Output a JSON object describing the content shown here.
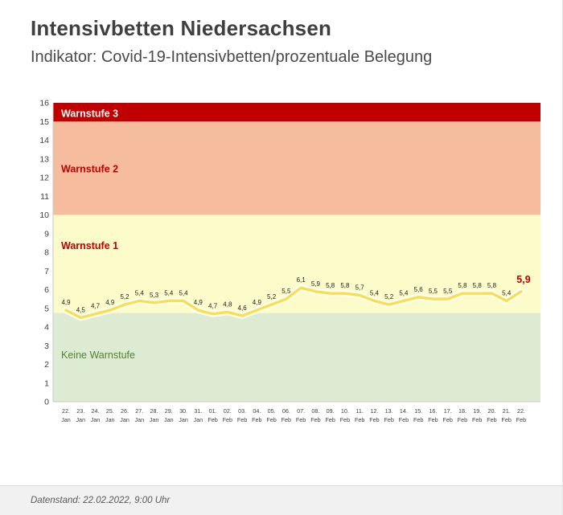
{
  "header": {
    "title": "Intensivbetten Niedersachsen",
    "subtitle": "Indikator: Covid-19-Intensivbetten/prozentuale Belegung"
  },
  "footer": {
    "datenstand": "Datenstand: 22.02.2022, 9:00 Uhr"
  },
  "chart_data": {
    "type": "line",
    "title": "Intensivbetten Niedersachsen",
    "ylabel": "",
    "xlabel": "",
    "ylim": [
      0,
      16
    ],
    "ytick_step": 1,
    "grid": false,
    "legend": "none",
    "categories": [
      {
        "day": "22.",
        "month": "Jan"
      },
      {
        "day": "23.",
        "month": "Jan"
      },
      {
        "day": "24.",
        "month": "Jan"
      },
      {
        "day": "25.",
        "month": "Jan"
      },
      {
        "day": "26.",
        "month": "Jan"
      },
      {
        "day": "27.",
        "month": "Jan"
      },
      {
        "day": "28.",
        "month": "Jan"
      },
      {
        "day": "29.",
        "month": "Jan"
      },
      {
        "day": "30.",
        "month": "Jan"
      },
      {
        "day": "31.",
        "month": "Jan"
      },
      {
        "day": "01.",
        "month": "Feb"
      },
      {
        "day": "02.",
        "month": "Feb"
      },
      {
        "day": "03.",
        "month": "Feb"
      },
      {
        "day": "04.",
        "month": "Feb"
      },
      {
        "day": "05.",
        "month": "Feb"
      },
      {
        "day": "06.",
        "month": "Feb"
      },
      {
        "day": "07.",
        "month": "Feb"
      },
      {
        "day": "08.",
        "month": "Feb"
      },
      {
        "day": "09.",
        "month": "Feb"
      },
      {
        "day": "10.",
        "month": "Feb"
      },
      {
        "day": "11.",
        "month": "Feb"
      },
      {
        "day": "12.",
        "month": "Feb"
      },
      {
        "day": "13.",
        "month": "Feb"
      },
      {
        "day": "14.",
        "month": "Feb"
      },
      {
        "day": "15.",
        "month": "Feb"
      },
      {
        "day": "16.",
        "month": "Feb"
      },
      {
        "day": "17.",
        "month": "Feb"
      },
      {
        "day": "18.",
        "month": "Feb"
      },
      {
        "day": "19.",
        "month": "Feb"
      },
      {
        "day": "20.",
        "month": "Feb"
      },
      {
        "day": "21.",
        "month": "Feb"
      },
      {
        "day": "22.",
        "month": "Feb"
      }
    ],
    "values": [
      4.9,
      4.5,
      4.7,
      4.9,
      5.2,
      5.4,
      5.3,
      5.4,
      5.4,
      4.9,
      4.7,
      4.8,
      4.6,
      4.9,
      5.2,
      5.5,
      6.1,
      5.9,
      5.8,
      5.8,
      5.7,
      5.4,
      5.2,
      5.4,
      5.6,
      5.5,
      5.5,
      5.8,
      5.8,
      5.8,
      5.4,
      5.9
    ],
    "value_labels": [
      "4,9",
      "4,5",
      "4,7",
      "4,9",
      "5,2",
      "5,4",
      "5,3",
      "5,4",
      "5,4",
      "4,9",
      "4,7",
      "4,8",
      "4,6",
      "4,9",
      "5,2",
      "5,5",
      "6,1",
      "5,9",
      "5,8",
      "5,8",
      "5,7",
      "5,4",
      "5,2",
      "5,4",
      "5,6",
      "5,5",
      "5,5",
      "5,8",
      "5,8",
      "5,8",
      "5,4",
      "5,9"
    ],
    "bands": [
      {
        "label": "Keine Warnstufe",
        "from": 0,
        "to": 4.75,
        "color": "#dcebd1",
        "text_color": "#538135",
        "bold": false,
        "label_y": 2.5
      },
      {
        "label": "Warnstufe 1",
        "from": 4.75,
        "to": 10,
        "color": "#fcfccb",
        "text_color": "#c00000",
        "bold": true,
        "label_y": 8.35
      },
      {
        "label": "Warnstufe 2",
        "from": 10,
        "to": 15,
        "color": "#f5bd9e",
        "text_color": "#c00000",
        "bold": true,
        "label_y": 12.45
      },
      {
        "label": "Warnstufe 3",
        "from": 15,
        "to": 16,
        "color": "#c00000",
        "text_color": "#ffffff",
        "bold": true,
        "label_y": 15.42
      }
    ],
    "line_color": "#fbdf4a",
    "line_halo": "#ffffff",
    "value_label_color": "#1f1f1f",
    "last_label_color": "#c00000",
    "axis_color": "#c9c9c9",
    "tick_label_color": "#404040"
  }
}
